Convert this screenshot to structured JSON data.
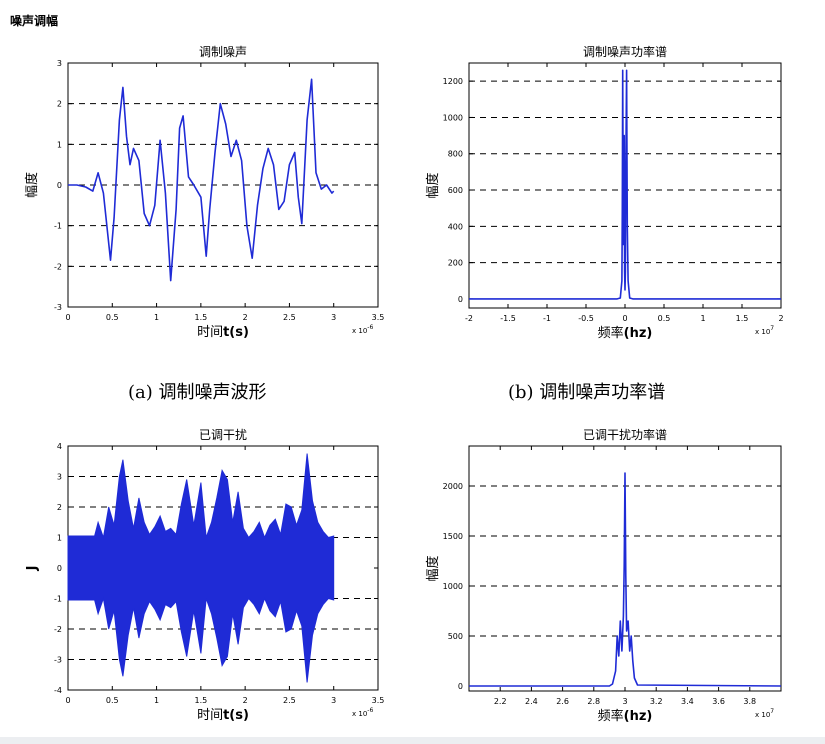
{
  "page": {
    "title": "噪声调幅"
  },
  "captions": {
    "a": "(a)  调制噪声波形",
    "b": "(b)  调制噪声功率谱"
  },
  "chart_data": [
    {
      "id": "modulated-noise",
      "type": "line",
      "title": "调制噪声",
      "xlabel_prefix": "时间",
      "xlabel_bold": "t(s)",
      "ylabel": "幅度",
      "x_exponent_base": "x 10",
      "x_exponent": "-6",
      "xlim": [
        0,
        3.5
      ],
      "ylim": [
        -3,
        3
      ],
      "xticks": [
        0,
        0.5,
        1,
        1.5,
        2,
        2.5,
        3,
        3.5
      ],
      "xtick_labels": [
        "0",
        "0.5",
        "1",
        "1.5",
        "2",
        "2.5",
        "3",
        "3.5"
      ],
      "yticks": [
        -3,
        -2,
        -1,
        0,
        1,
        2,
        3
      ],
      "ytick_labels": [
        "-3",
        "-2",
        "-1",
        "0",
        "1",
        "2",
        "3"
      ],
      "grid_dashed_y": [
        -2,
        -1,
        0,
        1,
        2
      ],
      "color": "#1f2bd6",
      "series": [
        {
          "x": [
            0,
            0.1,
            0.2,
            0.28,
            0.34,
            0.4,
            0.48,
            0.52,
            0.58,
            0.62,
            0.66,
            0.7,
            0.74,
            0.8,
            0.86,
            0.92,
            0.98,
            1.04,
            1.1,
            1.16,
            1.22,
            1.26,
            1.3,
            1.36,
            1.42,
            1.5,
            1.56,
            1.6,
            1.66,
            1.72,
            1.78,
            1.84,
            1.9,
            1.96,
            2.02,
            2.08,
            2.14,
            2.2,
            2.26,
            2.32,
            2.38,
            2.44,
            2.5,
            2.56,
            2.6,
            2.64,
            2.7,
            2.75,
            2.8,
            2.86,
            2.92,
            2.98,
            3.0
          ],
          "y": [
            0,
            0,
            -0.05,
            -0.15,
            0.3,
            -0.2,
            -1.85,
            -0.8,
            1.6,
            2.4,
            1.2,
            0.5,
            0.9,
            0.6,
            -0.7,
            -1.0,
            -0.5,
            1.1,
            -0.2,
            -2.35,
            -0.6,
            1.4,
            1.7,
            0.2,
            0.0,
            -0.3,
            -1.75,
            -0.6,
            0.8,
            2.0,
            1.5,
            0.7,
            1.1,
            0.6,
            -1.0,
            -1.8,
            -0.5,
            0.4,
            0.9,
            0.5,
            -0.6,
            -0.4,
            0.5,
            0.8,
            -0.3,
            -0.95,
            1.6,
            2.6,
            0.3,
            -0.1,
            0.0,
            -0.2,
            -0.15
          ]
        }
      ]
    },
    {
      "id": "modulated-noise-psd",
      "type": "line",
      "title": "调制噪声功率谱",
      "xlabel_prefix": "频率",
      "xlabel_bold": "(hz)",
      "ylabel": "幅度",
      "x_exponent_base": "x 10",
      "x_exponent": "7",
      "xlim": [
        -2,
        2
      ],
      "ylim": [
        -50,
        1300
      ],
      "xticks": [
        -2,
        -1.5,
        -1,
        -0.5,
        0,
        0.5,
        1,
        1.5,
        2
      ],
      "xtick_labels": [
        "-2",
        "-1.5",
        "-1",
        "-0.5",
        "0",
        "0.5",
        "1",
        "1.5",
        "2"
      ],
      "yticks": [
        0,
        200,
        400,
        600,
        800,
        1000,
        1200
      ],
      "ytick_labels": [
        "0",
        "200",
        "400",
        "600",
        "800",
        "1000",
        "1200"
      ],
      "grid_dashed_y": [
        200,
        400,
        600,
        800,
        1000,
        1200
      ],
      "color": "#1f2bd6",
      "series": [
        {
          "x": [
            -2,
            -0.1,
            -0.06,
            -0.04,
            -0.035,
            -0.03,
            -0.02,
            -0.01,
            -0.005,
            0,
            0.005,
            0.01,
            0.02,
            0.03,
            0.035,
            0.04,
            0.06,
            0.1,
            2
          ],
          "y": [
            0,
            0,
            5,
            100,
            500,
            1260,
            300,
            900,
            150,
            50,
            150,
            700,
            1260,
            400,
            250,
            100,
            5,
            0,
            0
          ]
        }
      ]
    },
    {
      "id": "jamming",
      "type": "area",
      "title": "已调干扰",
      "xlabel_prefix": "时间",
      "xlabel_bold": "t(s)",
      "ylabel": "J",
      "x_exponent_base": "x 10",
      "x_exponent": "-6",
      "xlim": [
        0,
        3.5
      ],
      "ylim": [
        -4,
        4
      ],
      "xticks": [
        0,
        0.5,
        1,
        1.5,
        2,
        2.5,
        3,
        3.5
      ],
      "xtick_labels": [
        "0",
        "0.5",
        "1",
        "1.5",
        "2",
        "2.5",
        "3",
        "3.5"
      ],
      "yticks": [
        -4,
        -3,
        -2,
        -1,
        0,
        1,
        2,
        3,
        4
      ],
      "ytick_labels": [
        "-4",
        "-3",
        "-2",
        "-1",
        "0",
        "1",
        "2",
        "3",
        "4"
      ],
      "grid_dashed_y": [
        -3,
        -2,
        -1,
        1,
        2,
        3
      ],
      "color": "#1f2bd6",
      "series": [
        {
          "x": [
            0,
            0.3,
            0.34,
            0.4,
            0.46,
            0.52,
            0.58,
            0.62,
            0.68,
            0.74,
            0.8,
            0.86,
            0.92,
            0.98,
            1.04,
            1.1,
            1.16,
            1.22,
            1.28,
            1.34,
            1.42,
            1.5,
            1.56,
            1.62,
            1.68,
            1.74,
            1.8,
            1.86,
            1.92,
            1.98,
            2.04,
            2.1,
            2.16,
            2.22,
            2.28,
            2.34,
            2.4,
            2.46,
            2.52,
            2.58,
            2.64,
            2.7,
            2.76,
            2.82,
            2.88,
            2.94,
            3.0
          ],
          "upper": [
            1.05,
            1.05,
            1.5,
            1.0,
            2.0,
            1.4,
            3.0,
            3.55,
            2.2,
            1.3,
            2.3,
            1.5,
            1.1,
            1.35,
            1.7,
            1.2,
            1.3,
            1.1,
            2.1,
            2.9,
            1.4,
            2.8,
            1.0,
            1.5,
            2.3,
            3.2,
            2.9,
            1.5,
            2.5,
            1.3,
            1.0,
            1.2,
            1.5,
            1.0,
            1.4,
            1.6,
            1.1,
            2.1,
            2.0,
            1.4,
            1.9,
            3.75,
            2.2,
            1.5,
            1.2,
            1.0,
            1.05
          ],
          "lower": [
            -1.05,
            -1.05,
            -1.5,
            -1.0,
            -2.0,
            -1.4,
            -3.0,
            -3.55,
            -2.2,
            -1.3,
            -2.3,
            -1.5,
            -1.1,
            -1.35,
            -1.7,
            -1.2,
            -1.3,
            -1.1,
            -2.1,
            -2.9,
            -1.4,
            -2.8,
            -1.0,
            -1.5,
            -2.3,
            -3.2,
            -2.9,
            -1.5,
            -2.5,
            -1.3,
            -1.0,
            -1.2,
            -1.5,
            -1.0,
            -1.4,
            -1.6,
            -1.1,
            -2.1,
            -2.0,
            -1.4,
            -1.9,
            -3.75,
            -2.2,
            -1.5,
            -1.2,
            -1.0,
            -1.05
          ]
        }
      ]
    },
    {
      "id": "jamming-psd",
      "type": "line",
      "title": "已调干扰功率谱",
      "xlabel_prefix": "频率",
      "xlabel_bold": "(hz)",
      "ylabel": "幅度",
      "x_exponent_base": "x 10",
      "x_exponent": "7",
      "xlim": [
        2.0,
        4.0
      ],
      "ylim": [
        -50,
        2400
      ],
      "xticks": [
        2.2,
        2.4,
        2.6,
        2.8,
        3.0,
        3.2,
        3.4,
        3.6,
        3.8
      ],
      "xtick_labels": [
        "2.2",
        "2.4",
        "2.6",
        "2.8",
        "3",
        "3.2",
        "3.4",
        "3.6",
        "3.8"
      ],
      "yticks": [
        0,
        500,
        1000,
        1500,
        2000
      ],
      "ytick_labels": [
        "0",
        "500",
        "1000",
        "1500",
        "2000"
      ],
      "grid_dashed_y": [
        500,
        1000,
        1500,
        2000
      ],
      "color": "#1f2bd6",
      "series": [
        {
          "x": [
            2.0,
            2.9,
            2.92,
            2.94,
            2.95,
            2.96,
            2.97,
            2.98,
            2.99,
            2.995,
            3.0,
            3.005,
            3.01,
            3.02,
            3.03,
            3.04,
            3.05,
            3.06,
            3.08,
            4.0
          ],
          "y": [
            0,
            0,
            20,
            150,
            500,
            300,
            650,
            350,
            700,
            1200,
            2130,
            1100,
            550,
            650,
            350,
            500,
            250,
            80,
            10,
            0
          ]
        }
      ]
    }
  ]
}
